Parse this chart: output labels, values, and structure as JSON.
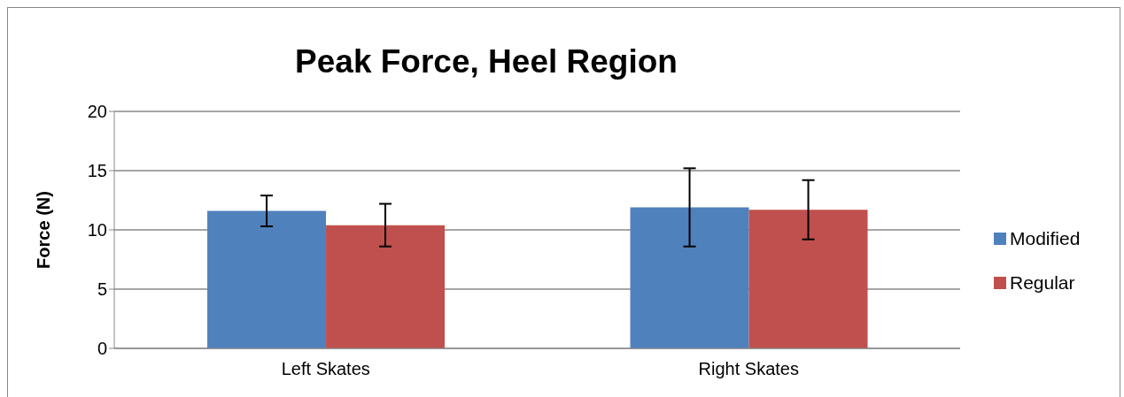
{
  "chart_data": {
    "type": "bar",
    "title": "Peak Force, Heel Region",
    "ylabel": "Force (N)",
    "categories": [
      "Left Skates",
      "Right Skates"
    ],
    "series": [
      {
        "name": "Modified",
        "color": "#4f81bd",
        "values": [
          11.6,
          11.9
        ],
        "errors": [
          1.3,
          3.3
        ]
      },
      {
        "name": "Regular",
        "color": "#c0504d",
        "values": [
          10.4,
          11.7
        ],
        "errors": [
          1.8,
          2.5
        ]
      }
    ],
    "ylim": [
      0,
      20
    ],
    "yticks": [
      0,
      5,
      10,
      15,
      20
    ],
    "grid": "y",
    "legend": "right"
  }
}
